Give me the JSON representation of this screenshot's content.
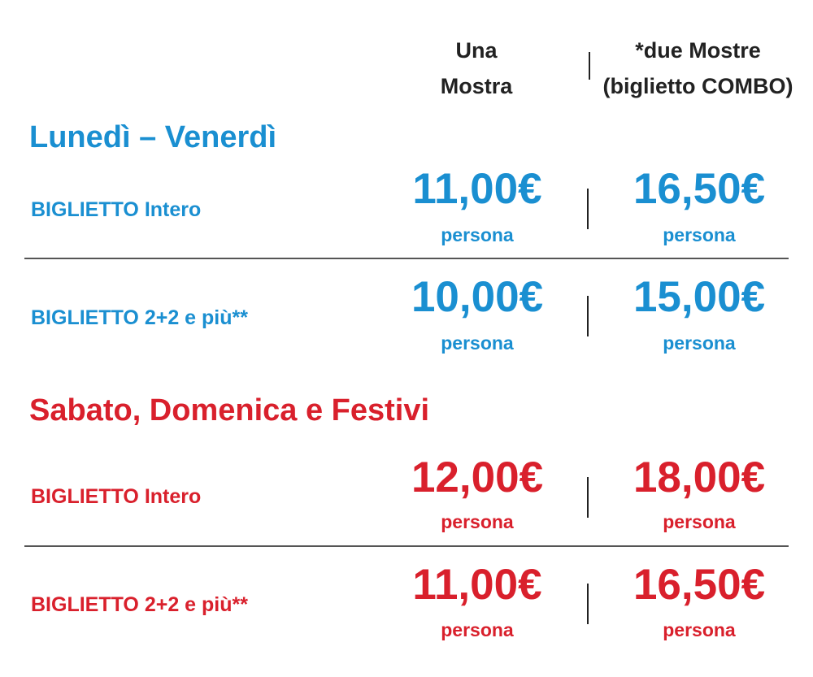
{
  "header": {
    "col1": [
      "Una",
      "Mostra"
    ],
    "col2": [
      "*due Mostre",
      "(biglietto COMBO)"
    ]
  },
  "colors": {
    "weekday": "#1a8fd1",
    "weekend": "#d9202c"
  },
  "sections": [
    {
      "title": "Lunedì – Venerdì",
      "rows": [
        {
          "label": "BIGLIETTO Intero",
          "price1": "11,00€",
          "price2": "16,50€",
          "unit": "persona"
        },
        {
          "label": "BIGLIETTO 2+2 e più**",
          "price1": "10,00€",
          "price2": "15,00€",
          "unit": "persona"
        }
      ]
    },
    {
      "title": "Sabato, Domenica e Festivi",
      "rows": [
        {
          "label": "BIGLIETTO Intero",
          "price1": "12,00€",
          "price2": "18,00€",
          "unit": "persona"
        },
        {
          "label": "BIGLIETTO 2+2 e più**",
          "price1": "11,00€",
          "price2": "16,50€",
          "unit": "persona"
        }
      ]
    }
  ]
}
